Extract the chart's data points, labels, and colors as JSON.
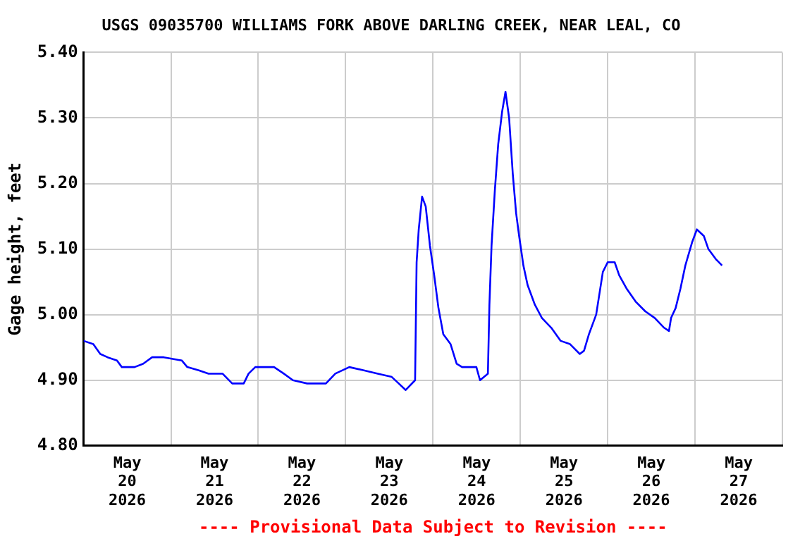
{
  "chart_data": {
    "type": "line",
    "title": "USGS 09035700 WILLIAMS FORK ABOVE DARLING CREEK, NEAR LEAL, CO",
    "ylabel": "Gage height, feet",
    "annotations": [
      "---- Provisional Data Subject to Revision ----"
    ],
    "x": [
      "2026-05-20T00:00",
      "2026-05-20T02:40",
      "2026-05-20T04:35",
      "2026-05-20T06:35",
      "2026-05-20T09:10",
      "2026-05-20T10:30",
      "2026-05-20T14:00",
      "2026-05-20T16:20",
      "2026-05-20T18:50",
      "2026-05-20T22:00",
      "2026-05-21T03:00",
      "2026-05-21T04:30",
      "2026-05-21T07:40",
      "2026-05-21T10:20",
      "2026-05-21T14:10",
      "2026-05-21T16:50",
      "2026-05-21T20:00",
      "2026-05-21T21:20",
      "2026-05-21T23:10",
      "2026-05-22T04:20",
      "2026-05-22T07:00",
      "2026-05-22T09:30",
      "2026-05-22T13:25",
      "2026-05-22T18:35",
      "2026-05-22T21:10",
      "2026-05-23T01:00",
      "2026-05-23T05:00",
      "2026-05-23T08:50",
      "2026-05-23T12:40",
      "2026-05-23T14:35",
      "2026-05-23T16:30",
      "2026-05-23T19:05",
      "2026-05-23T19:30",
      "2026-05-23T20:05",
      "2026-05-23T21:00",
      "2026-05-23T22:00",
      "2026-05-23T23:10",
      "2026-05-24T00:20",
      "2026-05-24T01:30",
      "2026-05-24T02:50",
      "2026-05-24T04:50",
      "2026-05-24T06:30",
      "2026-05-24T08:00",
      "2026-05-24T11:55",
      "2026-05-24T12:55",
      "2026-05-24T15:05",
      "2026-05-24T15:30",
      "2026-05-24T16:05",
      "2026-05-24T17:00",
      "2026-05-24T17:55",
      "2026-05-24T19:00",
      "2026-05-24T19:55",
      "2026-05-24T20:55",
      "2026-05-24T21:55",
      "2026-05-24T22:50",
      "2026-05-24T23:40",
      "2026-05-25T00:50",
      "2026-05-25T02:00",
      "2026-05-25T04:00",
      "2026-05-25T05:55",
      "2026-05-25T08:30",
      "2026-05-25T11:05",
      "2026-05-25T13:40",
      "2026-05-25T16:20",
      "2026-05-25T17:30",
      "2026-05-25T18:50",
      "2026-05-25T20:50",
      "2026-05-25T22:40",
      "2026-05-26T00:00",
      "2026-05-26T01:55",
      "2026-05-26T03:10",
      "2026-05-26T05:10",
      "2026-05-26T07:40",
      "2026-05-26T10:20",
      "2026-05-26T12:55",
      "2026-05-26T15:30",
      "2026-05-26T16:50",
      "2026-05-26T17:25",
      "2026-05-26T18:40",
      "2026-05-26T20:00",
      "2026-05-26T21:20",
      "2026-05-26T23:10",
      "2026-05-27T00:30",
      "2026-05-27T02:25",
      "2026-05-27T03:40",
      "2026-05-27T05:40",
      "2026-05-27T07:25"
    ],
    "series": [
      {
        "color": "#0000ff",
        "values": [
          4.96,
          4.955,
          4.94,
          4.935,
          4.93,
          4.92,
          4.92,
          4.925,
          4.935,
          4.935,
          4.93,
          4.92,
          4.915,
          4.91,
          4.91,
          4.895,
          4.895,
          4.91,
          4.92,
          4.92,
          4.91,
          4.9,
          4.895,
          4.895,
          4.91,
          4.92,
          4.915,
          4.91,
          4.905,
          4.895,
          4.885,
          4.9,
          5.08,
          5.13,
          5.18,
          5.165,
          5.105,
          5.06,
          5.01,
          4.97,
          4.955,
          4.925,
          4.92,
          4.92,
          4.9,
          4.91,
          5.015,
          5.105,
          5.19,
          5.26,
          5.31,
          5.34,
          5.3,
          5.215,
          5.155,
          5.12,
          5.075,
          5.045,
          5.015,
          4.995,
          4.98,
          4.96,
          4.955,
          4.94,
          4.945,
          4.97,
          5.0,
          5.065,
          5.08,
          5.08,
          5.06,
          5.04,
          5.02,
          5.005,
          4.995,
          4.98,
          4.975,
          4.995,
          5.01,
          5.04,
          5.075,
          5.11,
          5.13,
          5.12,
          5.1,
          5.085,
          5.075
        ]
      }
    ],
    "xlim": [
      "2026-05-20T00:00",
      "2026-05-28T00:00"
    ],
    "xticks": [
      {
        "value": "2026-05-20T00:00",
        "label": null
      },
      {
        "value": "2026-05-20T12:00",
        "label": "May\n20\n2026"
      },
      {
        "value": "2026-05-21T00:00",
        "label": null
      },
      {
        "value": "2026-05-21T12:00",
        "label": "May\n21\n2026"
      },
      {
        "value": "2026-05-22T00:00",
        "label": null
      },
      {
        "value": "2026-05-22T12:00",
        "label": "May\n22\n2026"
      },
      {
        "value": "2026-05-23T00:00",
        "label": null
      },
      {
        "value": "2026-05-23T12:00",
        "label": "May\n23\n2026"
      },
      {
        "value": "2026-05-24T00:00",
        "label": null
      },
      {
        "value": "2026-05-24T12:00",
        "label": "May\n24\n2026"
      },
      {
        "value": "2026-05-25T00:00",
        "label": null
      },
      {
        "value": "2026-05-25T12:00",
        "label": "May\n25\n2026"
      },
      {
        "value": "2026-05-26T00:00",
        "label": null
      },
      {
        "value": "2026-05-26T12:00",
        "label": "May\n26\n2026"
      },
      {
        "value": "2026-05-27T00:00",
        "label": null
      },
      {
        "value": "2026-05-27T12:00",
        "label": "May\n27\n2026"
      },
      {
        "value": "2026-05-28T00:00",
        "label": null
      }
    ],
    "ylim": [
      4.8,
      5.4
    ],
    "yticks": [
      {
        "value": 4.8,
        "label": "4.80"
      },
      {
        "value": 4.9,
        "label": "4.90"
      },
      {
        "value": 5.0,
        "label": "5.00"
      },
      {
        "value": 5.1,
        "label": "5.10"
      },
      {
        "value": 5.2,
        "label": "5.20"
      },
      {
        "value": 5.3,
        "label": "5.30"
      },
      {
        "value": 5.4,
        "label": "5.40"
      }
    ],
    "grid": true,
    "legend": false,
    "marker": "none",
    "line_style": "solid"
  }
}
